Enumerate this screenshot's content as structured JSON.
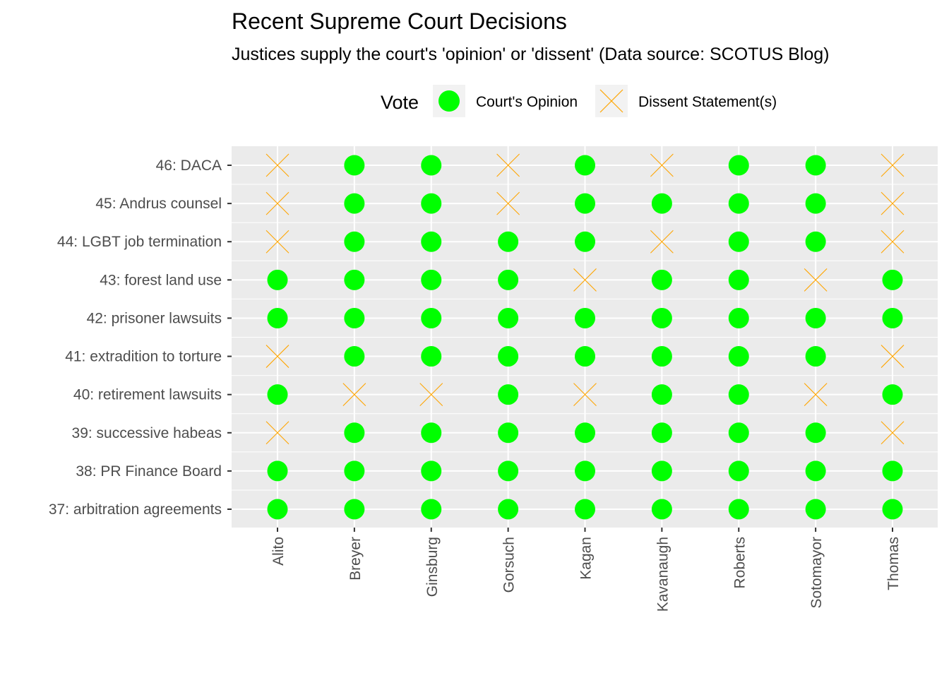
{
  "chart_data": {
    "type": "scatter",
    "title": "Recent Supreme Court Decisions",
    "subtitle": "Justices supply the court's 'opinion' or 'dissent' (Data source: SCOTUS Blog)",
    "xlabel": "",
    "ylabel": "",
    "legend": {
      "title": "Vote",
      "placement": "top",
      "entries": [
        {
          "key": "O",
          "label": "Court's Opinion",
          "shape": "circle",
          "color": "#00ff00"
        },
        {
          "key": "D",
          "label": "Dissent Statement(s)",
          "shape": "x",
          "color": "#ffa500"
        }
      ]
    },
    "grid": true,
    "panel_background": "#ebebeb",
    "x_categories": [
      "Alito",
      "Breyer",
      "Ginsburg",
      "Gorsuch",
      "Kagan",
      "Kavanaugh",
      "Roberts",
      "Sotomayor",
      "Thomas"
    ],
    "y_categories": [
      "46: DACA",
      "45: Andrus counsel",
      "44: LGBT job termination",
      "43: forest land use",
      "42: prisoner lawsuits",
      "41: extradition to torture",
      "40: retirement lawsuits",
      "39: successive habeas",
      "38: PR Finance Board",
      "37: arbitration agreements"
    ],
    "votes": [
      [
        "D",
        "O",
        "O",
        "D",
        "O",
        "D",
        "O",
        "O",
        "D"
      ],
      [
        "D",
        "O",
        "O",
        "D",
        "O",
        "O",
        "O",
        "O",
        "D"
      ],
      [
        "D",
        "O",
        "O",
        "O",
        "O",
        "D",
        "O",
        "O",
        "D"
      ],
      [
        "O",
        "O",
        "O",
        "O",
        "D",
        "O",
        "O",
        "D",
        "O"
      ],
      [
        "O",
        "O",
        "O",
        "O",
        "O",
        "O",
        "O",
        "O",
        "O"
      ],
      [
        "D",
        "O",
        "O",
        "O",
        "O",
        "O",
        "O",
        "O",
        "D"
      ],
      [
        "O",
        "D",
        "D",
        "O",
        "D",
        "O",
        "O",
        "D",
        "O"
      ],
      [
        "D",
        "O",
        "O",
        "O",
        "O",
        "O",
        "O",
        "O",
        "D"
      ],
      [
        "O",
        "O",
        "O",
        "O",
        "O",
        "O",
        "O",
        "O",
        "O"
      ],
      [
        "O",
        "O",
        "O",
        "O",
        "O",
        "O",
        "O",
        "O",
        "O"
      ]
    ]
  }
}
